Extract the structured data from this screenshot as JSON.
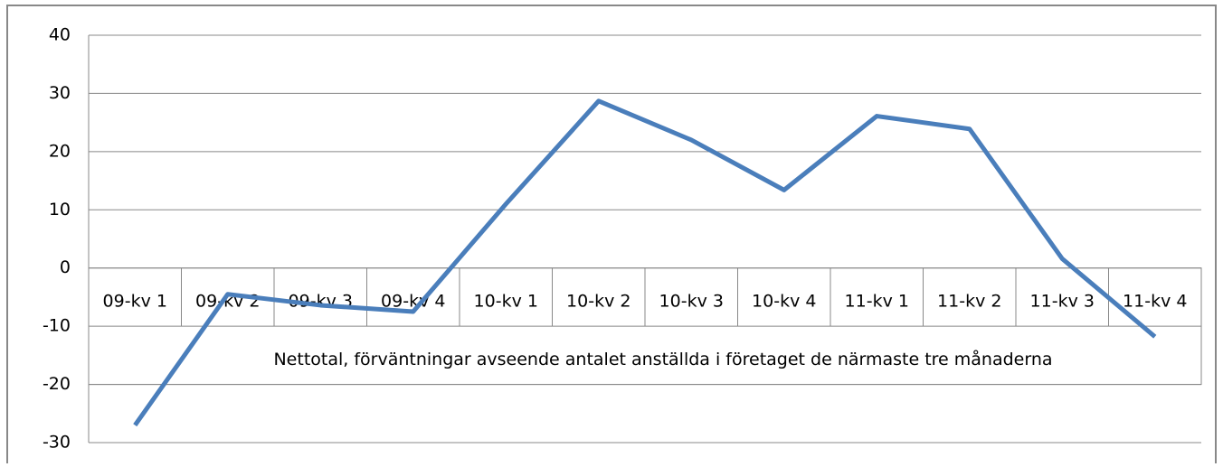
{
  "chart_data": {
    "type": "line",
    "categories": [
      "09-kv 1",
      "09-kv 2",
      "09-kv 3",
      "09-kv 4",
      "10-kv 1",
      "10-kv 2",
      "10-kv 3",
      "10-kv 4",
      "11-kv 1",
      "11-kv 2",
      "11-kv 3",
      "11-kv 4"
    ],
    "series": [
      {
        "name": "Nettotal, förväntningar avseende antalet anställda i företaget de närmaste tre månaderna",
        "color": "#4a7ebb",
        "values": [
          -27,
          -4.5,
          -6.4,
          -7.5,
          11,
          28.7,
          22,
          13.4,
          26.1,
          23.9,
          1.6,
          -11.8
        ]
      }
    ],
    "ylim": [
      -30,
      40
    ],
    "yticks": [
      -30,
      -20,
      -10,
      0,
      10,
      20,
      30,
      40
    ],
    "grid": true
  }
}
